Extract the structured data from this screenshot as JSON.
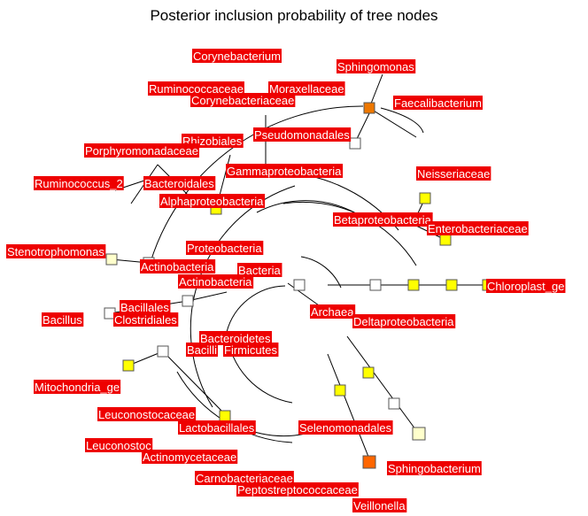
{
  "title": "Posterior inclusion probability of tree nodes",
  "colors": {
    "label_bg": "#ee0000",
    "label_text": "#ffffff",
    "edge": "#000000",
    "node_white": "#ffffff",
    "node_yellow": "#ffff00",
    "node_lightyellow": "#ffffcc",
    "node_orange": "#ff6600",
    "node_darkorange": "#ee7700"
  },
  "labels": [
    "Corynebacterium",
    "Sphingomonas",
    "Ruminococcaceae",
    "Moraxellaceae",
    "Corynebacteriaceae",
    "Faecalibacterium",
    "Pseudomonadales",
    "Rhizobiales",
    "Porphyromonadaceae",
    "Gammaproteobacteria",
    "Ruminococcus_2",
    "Bacteroidales",
    "Neisseriaceae",
    "Alphaproteobacteria",
    "Betaproteobacteria",
    "Enterobacteriaceae",
    "Stenotrophomonas",
    "Proteobacteria",
    "Actinobacteria",
    "Bacteria",
    "Actinobacteria",
    "Chloroplast_ge",
    "Bacillales",
    "Bacillus",
    "Clostridiales",
    "Archaea",
    "Deltaproteobacteria",
    "Bacteroidetes",
    "Bacilli",
    "Firmicutes",
    "Mitochondria_ge",
    "Leuconostocaceae",
    "Lactobacillales",
    "Selenomonadales",
    "Leuconostoc",
    "Actinomycetaceae",
    "Sphingobacterium",
    "Carnobacteriaceae",
    "Peptostreptococcaceae",
    "Veillonella"
  ]
}
